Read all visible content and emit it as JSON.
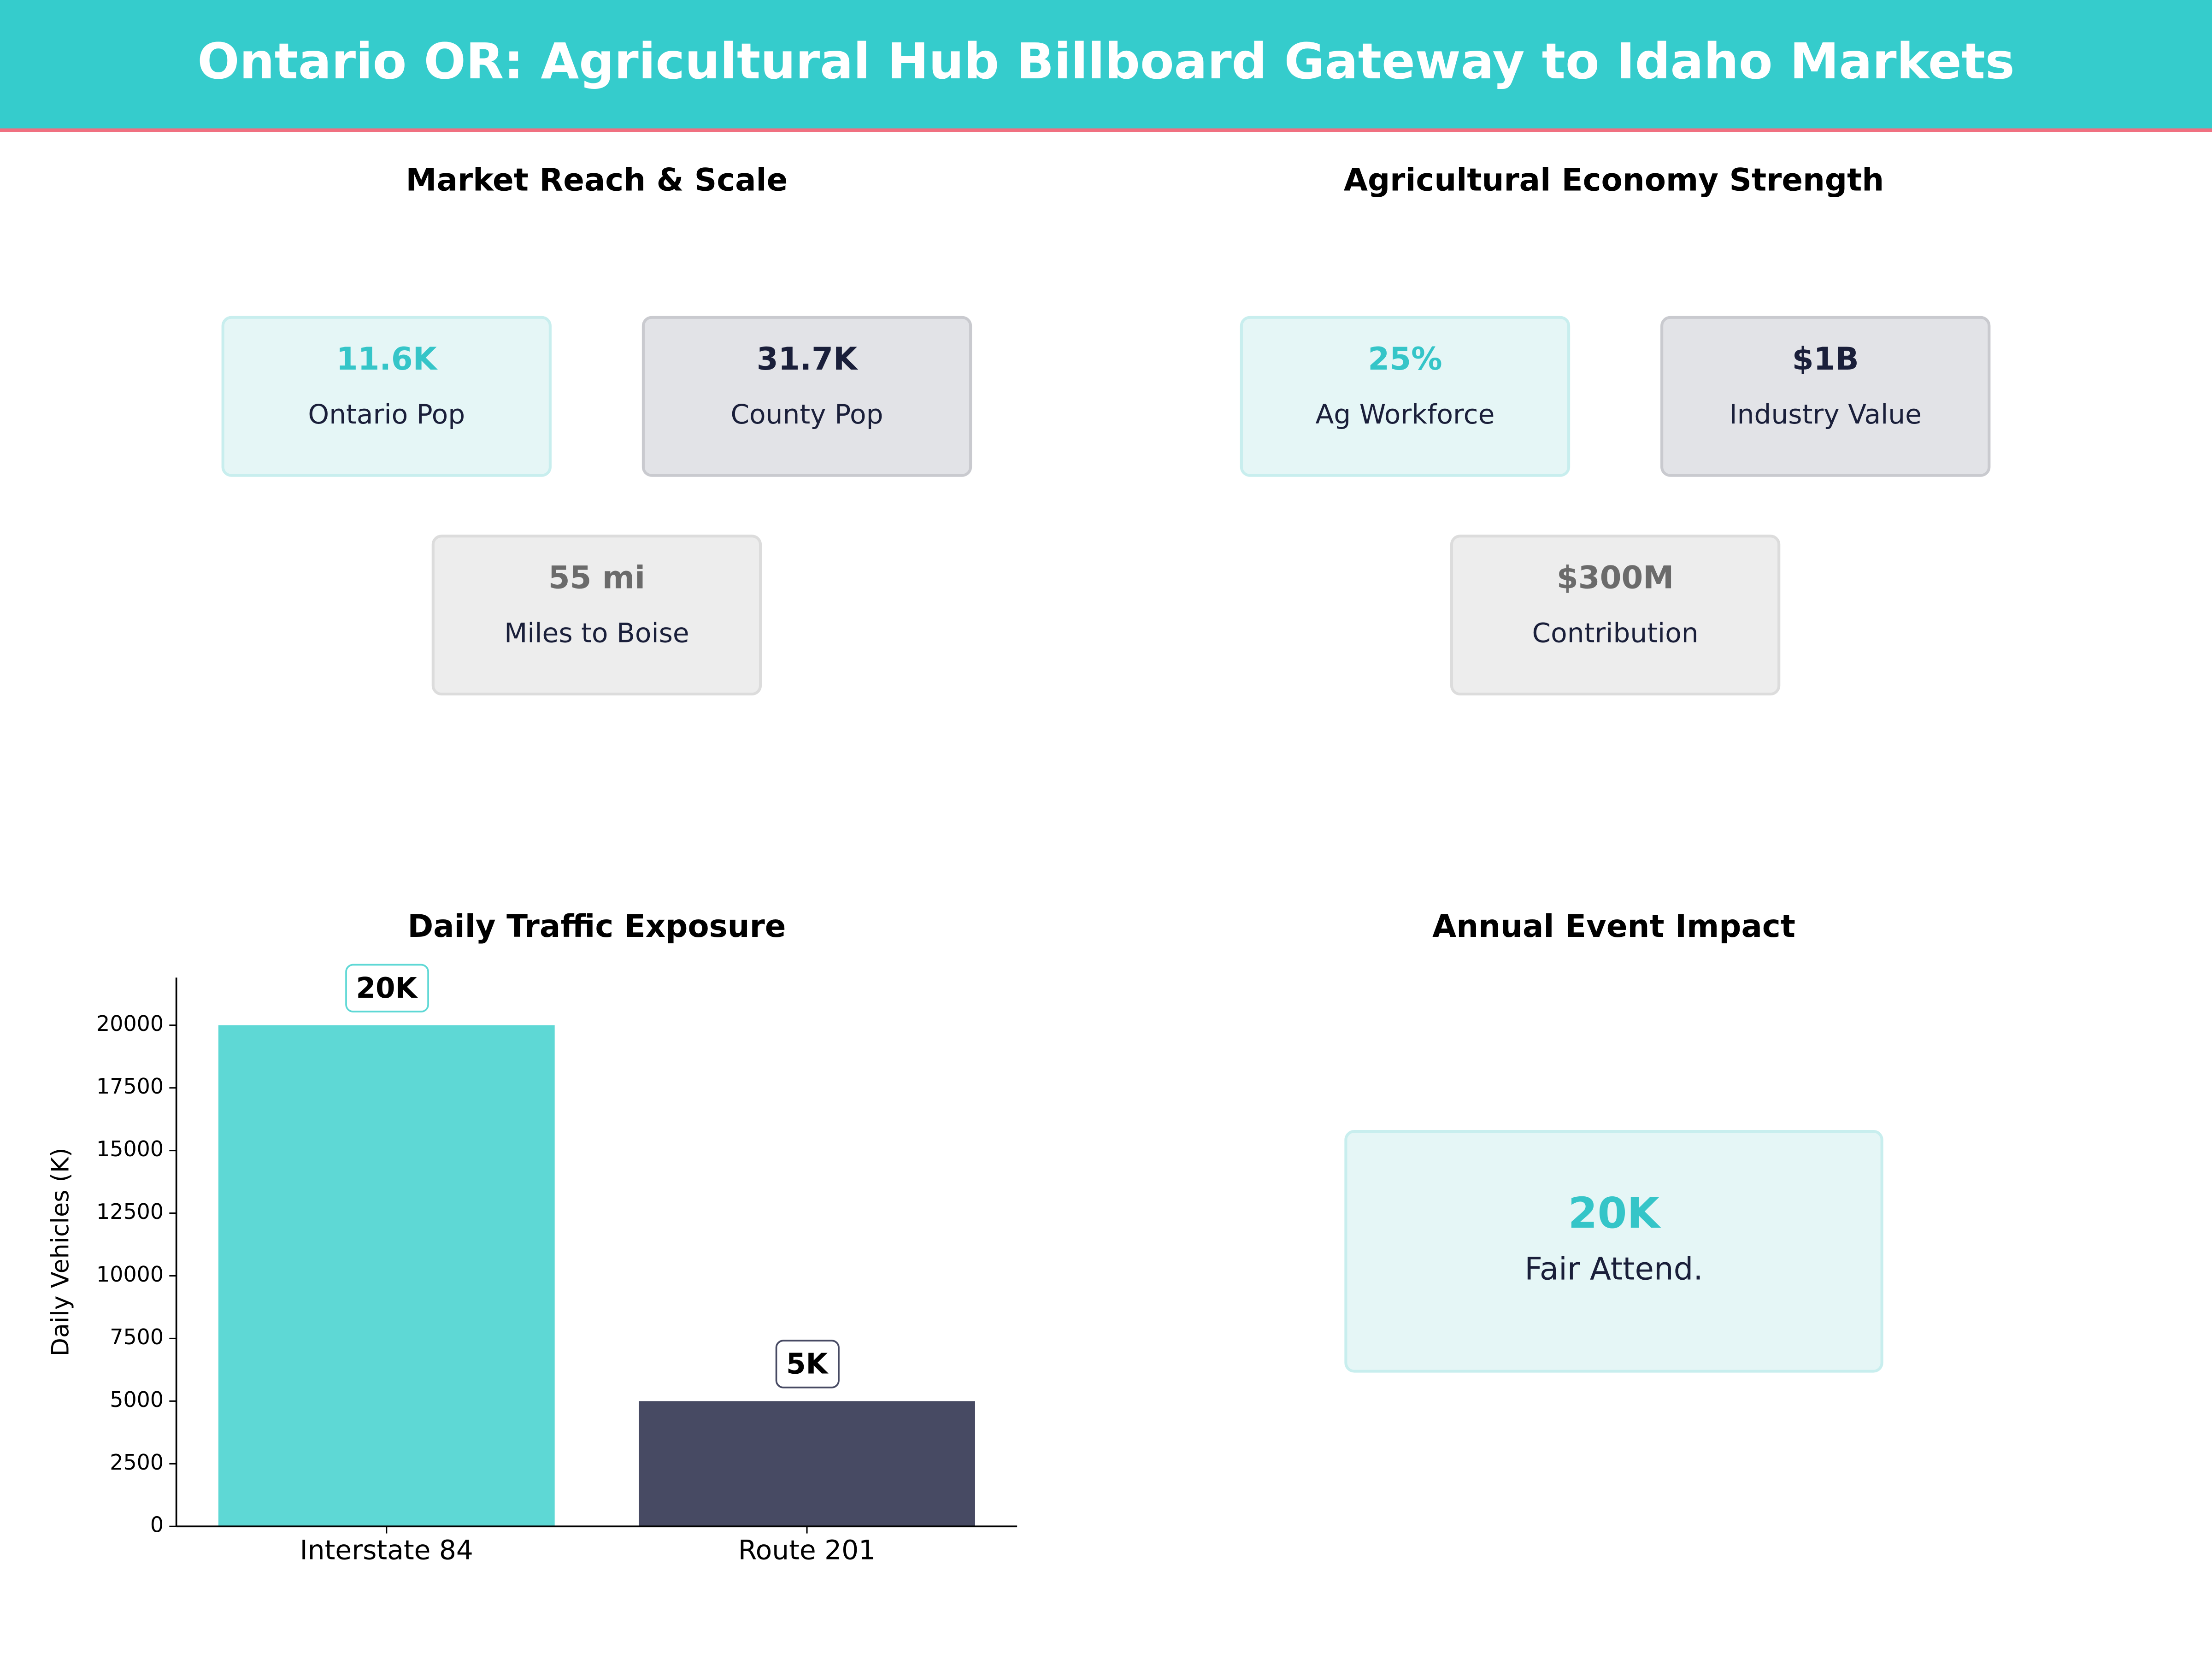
{
  "title": "Ontario OR: Agricultural Hub Billboard Gateway to Idaho Markets",
  "market_reach": {
    "title": "Market Reach & Scale",
    "cards": [
      {
        "value": "11.6K",
        "label": "Ontario Pop"
      },
      {
        "value": "31.7K",
        "label": "County Pop"
      },
      {
        "value": "55 mi",
        "label": "Miles to Boise"
      }
    ]
  },
  "ag_economy": {
    "title": "Agricultural Economy Strength",
    "cards": [
      {
        "value": "25%",
        "label": "Ag Workforce"
      },
      {
        "value": "$1B",
        "label": "Industry Value"
      },
      {
        "value": "$300M",
        "label": "Contribution"
      }
    ]
  },
  "chart_data": {
    "type": "bar",
    "title": "Daily Traffic Exposure",
    "y_label": "Daily Vehicles (K)",
    "categories": [
      "Interstate 84",
      "Route 201"
    ],
    "values": [
      20000,
      5000
    ],
    "value_labels": [
      "20K",
      "5K"
    ],
    "colors": [
      "#5ed8d5",
      "#474a63"
    ],
    "ylim": [
      0,
      21900
    ],
    "yticks": [
      0,
      2500,
      5000,
      7500,
      10000,
      12500,
      15000,
      17500,
      20000
    ]
  },
  "event_impact": {
    "title": "Annual Event Impact",
    "cards": [
      {
        "value": "20K",
        "label": "Fair Attend."
      }
    ]
  }
}
